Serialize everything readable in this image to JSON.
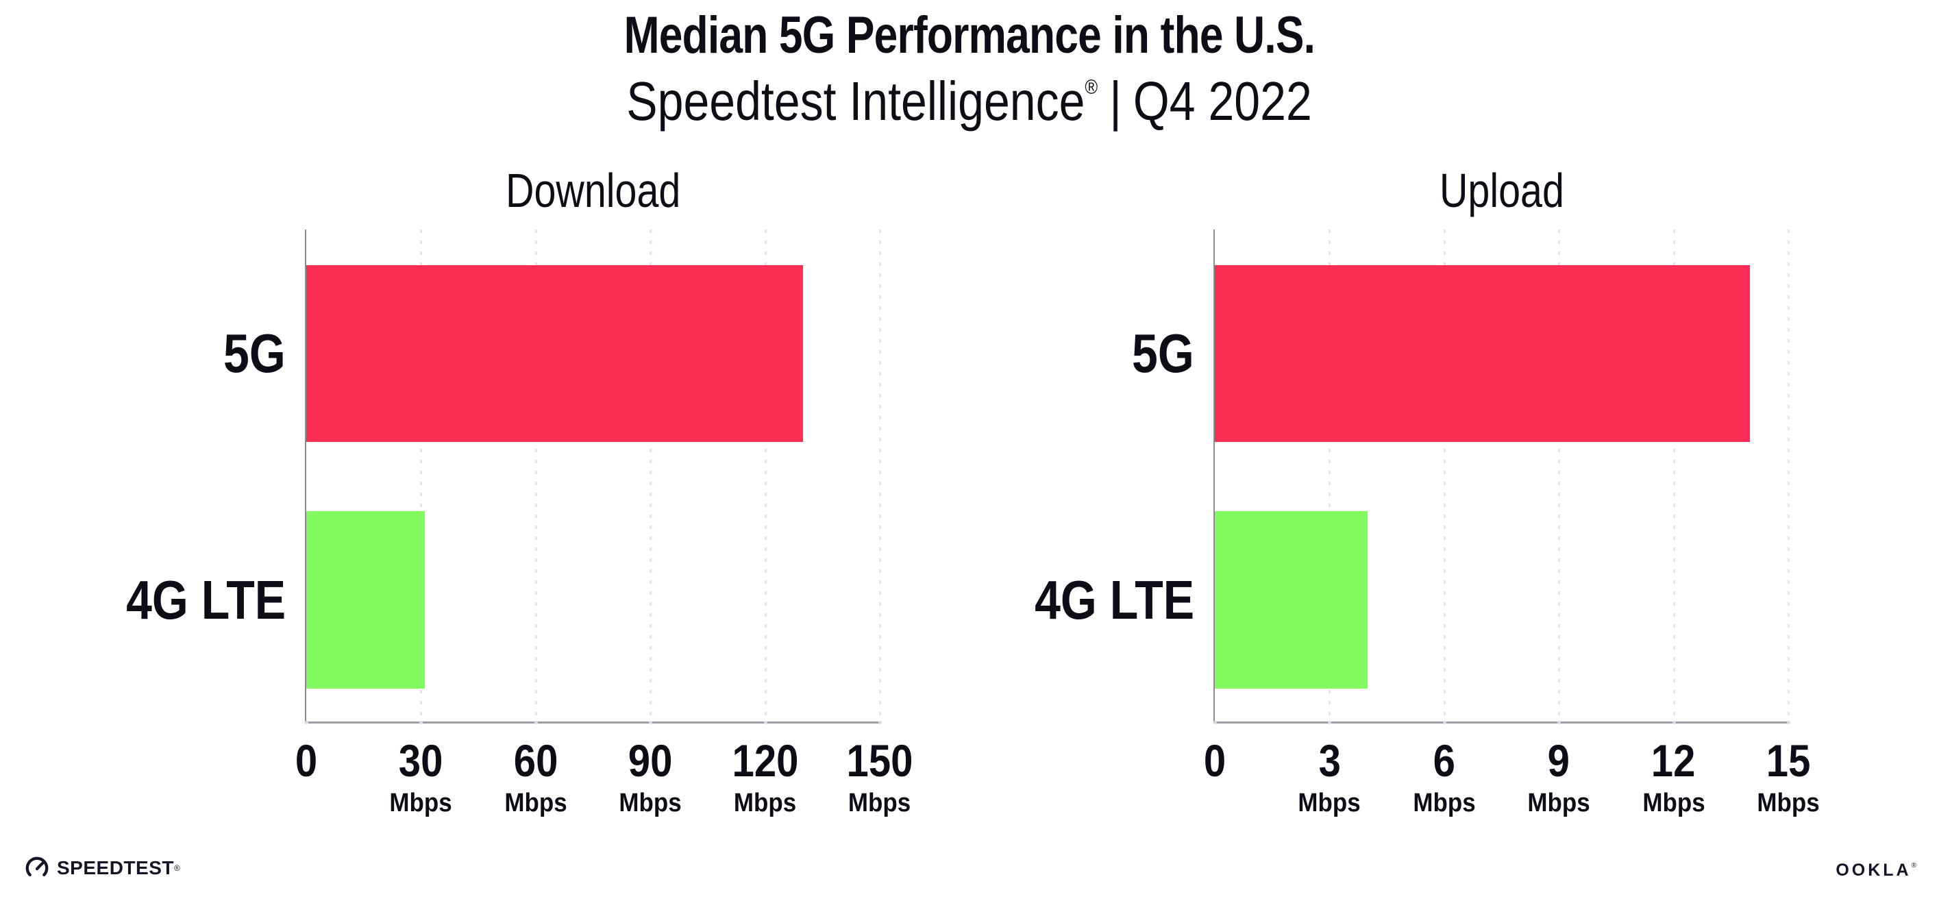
{
  "header": {
    "title": "Median 5G Performance in the U.S.",
    "subtitle_product": "Speedtest Intelligence",
    "subtitle_reg": "®",
    "subtitle_separator": "|",
    "subtitle_period": "Q4 2022"
  },
  "colors": {
    "bar_5g": "#fd2d55",
    "bar_4g_lte": "#80fa5f",
    "y_axis": "#8c8c8c",
    "x_axis": "#9d9da4",
    "gridline": "#e3e3ee",
    "text": "#0d0d16"
  },
  "chart_data": [
    {
      "type": "bar",
      "orientation": "horizontal",
      "title": "Download",
      "categories": [
        "5G",
        "4G LTE"
      ],
      "values": [
        130,
        31
      ],
      "series_colors": [
        "#fd2d55",
        "#80fa5f"
      ],
      "unit": "Mbps",
      "xlim": [
        0,
        150
      ],
      "ticks": [
        0,
        30,
        60,
        90,
        120,
        150
      ],
      "grid": "dotted-vertical",
      "legend": "none"
    },
    {
      "type": "bar",
      "orientation": "horizontal",
      "title": "Upload",
      "categories": [
        "5G",
        "4G LTE"
      ],
      "values": [
        14,
        4
      ],
      "series_colors": [
        "#fd2d55",
        "#80fa5f"
      ],
      "unit": "Mbps",
      "xlim": [
        0,
        15
      ],
      "ticks": [
        0,
        3,
        6,
        9,
        12,
        15
      ],
      "grid": "dotted-vertical",
      "legend": "none"
    }
  ],
  "footer": {
    "speedtest_logo_text": "SPEEDTEST",
    "speedtest_reg": "®",
    "ookla_logo_text": "OOKLA",
    "ookla_reg": "®"
  }
}
